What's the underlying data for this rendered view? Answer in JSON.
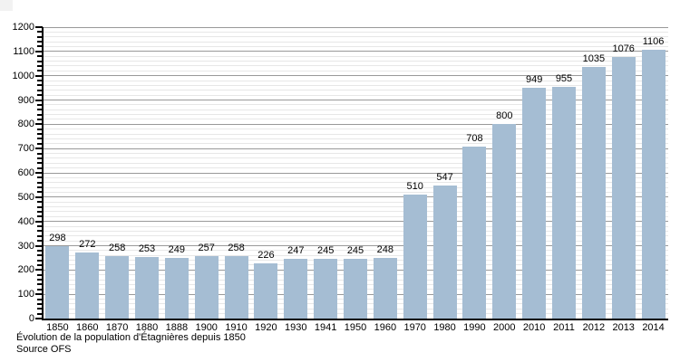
{
  "chart_data": {
    "type": "bar",
    "title": "Évolution de la population d'Étagnières depuis 1850",
    "source": "Source OFS",
    "categories": [
      "1850",
      "1860",
      "1870",
      "1880",
      "1888",
      "1900",
      "1910",
      "1920",
      "1930",
      "1941",
      "1950",
      "1960",
      "1970",
      "1980",
      "1990",
      "2000",
      "2010",
      "2011",
      "2012",
      "2013",
      "2014"
    ],
    "values": [
      298,
      272,
      258,
      253,
      249,
      257,
      258,
      226,
      247,
      245,
      245,
      248,
      510,
      547,
      708,
      800,
      949,
      955,
      1035,
      1076,
      1106
    ],
    "xlabel": "",
    "ylabel": "",
    "ylim": [
      0,
      1200
    ],
    "y_major_step": 100,
    "y_minor_step": 20,
    "y_tick_labels": [
      "0",
      "100",
      "200",
      "300",
      "400",
      "500",
      "600",
      "700",
      "800",
      "900",
      "1000",
      "1100",
      "1200"
    ],
    "grid": "major and minor horizontal gridlines",
    "legend_position": "none",
    "colors": {
      "bar": "#a5bdd3",
      "major_grid": "#999999",
      "minor_grid": "#e7e7e7",
      "axis": "#000000",
      "text": "#000000"
    }
  }
}
